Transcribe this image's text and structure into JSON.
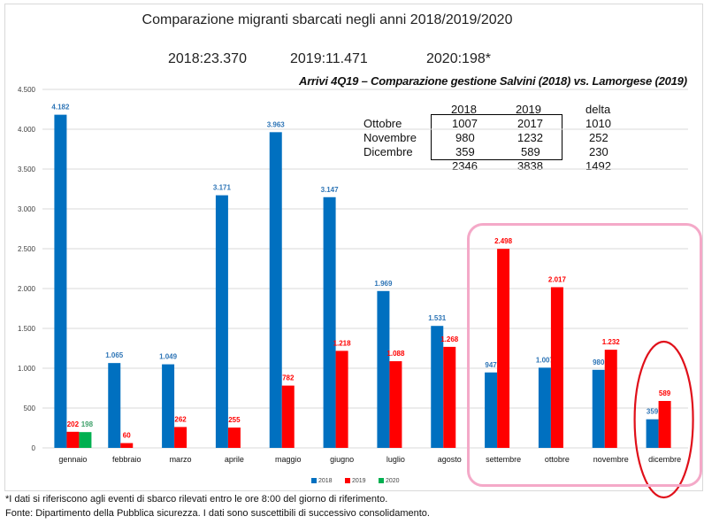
{
  "chart_data": {
    "type": "bar",
    "title": "Comparazione migranti sbarcati negli anni 2018/2019/2020",
    "totals": [
      "2018:23.370",
      "2019:11.471",
      "2020:198*"
    ],
    "categories": [
      "gennaio",
      "febbraio",
      "marzo",
      "aprile",
      "maggio",
      "giugno",
      "luglio",
      "agosto",
      "settembre",
      "ottobre",
      "novembre",
      "dicembre"
    ],
    "series": [
      {
        "name": "2018",
        "color": "#0070c0",
        "values": [
          4182,
          1065,
          1049,
          3171,
          3963,
          3147,
          1969,
          1531,
          947,
          1007,
          980,
          359
        ],
        "labels": [
          "4.182",
          "1.065",
          "1.049",
          "3.171",
          "3.963",
          "3.147",
          "1.969",
          "1.531",
          "947",
          "1.007",
          "980",
          "359"
        ]
      },
      {
        "name": "2019",
        "color": "#ff0000",
        "values": [
          202,
          60,
          262,
          255,
          782,
          1218,
          1088,
          1268,
          2498,
          2017,
          1232,
          589
        ],
        "labels": [
          "202",
          "60",
          "262",
          "255",
          "782",
          "1.218",
          "1.088",
          "1.268",
          "2.498",
          "2.017",
          "1.232",
          "589"
        ]
      },
      {
        "name": "2020",
        "color": "#00b050",
        "values": [
          198,
          null,
          null,
          null,
          null,
          null,
          null,
          null,
          null,
          null,
          null,
          null
        ],
        "labels": [
          "198",
          "",
          "",
          "",
          "",
          "",
          "",
          "",
          "",
          "",
          "",
          ""
        ]
      }
    ],
    "ylim": [
      0,
      4500
    ],
    "yticks": [
      0,
      500,
      1000,
      1500,
      2000,
      2500,
      3000,
      3500,
      4000,
      4500
    ],
    "ytick_labels": [
      "0",
      "500",
      "1.000",
      "1.500",
      "2.000",
      "2.500",
      "3.000",
      "3.500",
      "4.000",
      "4.500"
    ],
    "xlabel": "",
    "ylabel": "",
    "grid": true,
    "legend_position": "bottom-right",
    "legend": [
      "2018",
      "2019",
      "2020"
    ],
    "annotations": {
      "highlight_box": "settembre–dicembre",
      "highlight_ellipse": "dicembre"
    },
    "inset_table": {
      "title": "Arrivi 4Q19 – Comparazione gestione Salvini (2018) vs. Lamorgese (2019)",
      "headers": [
        "",
        "2018",
        "2019",
        "delta"
      ],
      "rows": [
        [
          "Ottobre",
          "1007",
          "2017",
          "1010"
        ],
        [
          "Novembre",
          "980",
          "1232",
          "252"
        ],
        [
          "Dicembre",
          "359",
          "589",
          "230"
        ]
      ],
      "totals": [
        "",
        "2346",
        "3838",
        "1492"
      ]
    }
  },
  "footnotes": [
    "*I dati si riferiscono agli eventi di sbarco rilevati entro le ore 8:00 del giorno di riferimento.",
    "Fonte: Dipartimento della Pubblica sicurezza. I dati sono suscettibili di successivo consolidamento."
  ]
}
